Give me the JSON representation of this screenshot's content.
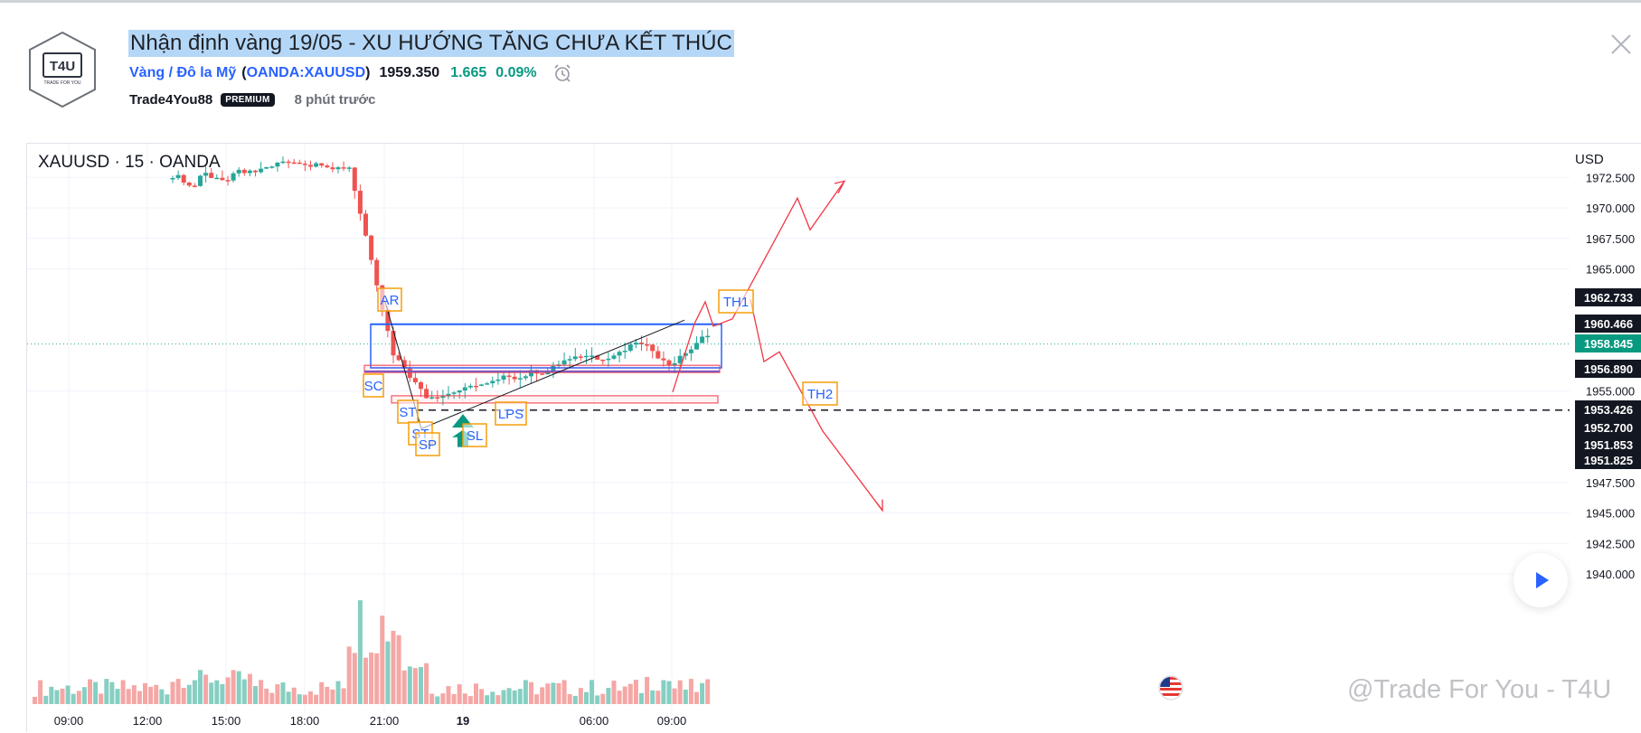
{
  "header": {
    "title": "Nhận định vàng 19/05 - XU HƯỚNG TĂNG CHƯA KẾT THÚC",
    "symbol_name": "Vàng / Đô la Mỹ",
    "paren_open": "(",
    "ticker": "OANDA:XAUUSD",
    "paren_close": ")",
    "price": "1959.350",
    "change": "1.665",
    "change_pct": "0.09%",
    "author": "Trade4You88",
    "badge": "PREMIUM",
    "time_ago": "8 phút trước",
    "logo_text": "T4U",
    "logo_subtext": "TRADE FOR YOU"
  },
  "chart": {
    "legend": "XAUUSD · 15 · OANDA",
    "currency": "USD",
    "watermark": "@Trade For You - T4U",
    "colors": {
      "up": "#26a69a",
      "down": "#ef5350",
      "vol_up": "#86cfc2",
      "vol_down": "#f5a7a5",
      "box_blue": "#2962ff",
      "purple": "#7e57c2",
      "annot_border": "#f59e0b",
      "annot_text": "#2962ff",
      "projection": "#f23645",
      "last_price_bg": "#089981"
    },
    "price_axis": [
      "1972.500",
      "1970.000",
      "1967.500",
      "1965.000",
      "1955.000",
      "1947.500",
      "1945.000",
      "1942.500",
      "1940.000"
    ],
    "price_badges": [
      {
        "label": "1962.733",
        "style": "dark"
      },
      {
        "label": "1960.466",
        "style": "dark"
      },
      {
        "label": "1958.845",
        "style": "green"
      },
      {
        "label": "1956.890",
        "style": "dark"
      },
      {
        "label": "1953.426",
        "style": "dark"
      },
      {
        "label": "1952.700",
        "style": "dark"
      },
      {
        "label": "1951.853",
        "style": "dark"
      },
      {
        "label": "1951.825",
        "style": "dark"
      }
    ],
    "time_axis": [
      "09:00",
      "12:00",
      "15:00",
      "18:00",
      "21:00",
      "19",
      "06:00",
      "09:00"
    ],
    "annotations": [
      "AR",
      "SC",
      "ST",
      "ST",
      "SP",
      "SL",
      "LPS",
      "TH1",
      "TH2"
    ]
  }
}
